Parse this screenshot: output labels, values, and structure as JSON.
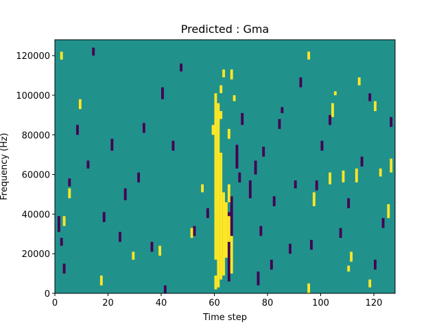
{
  "chart_data": {
    "type": "heatmap",
    "title": "Predicted : Gma",
    "xlabel": "Time step",
    "ylabel": "Frequency (Hz)",
    "xlim": [
      0,
      128
    ],
    "ylim": [
      0,
      128000
    ],
    "xticks": [
      "0",
      "20",
      "40",
      "60",
      "80",
      "100",
      "120"
    ],
    "xtick_values": [
      0,
      20,
      40,
      60,
      80,
      100,
      120
    ],
    "yticks": [
      "0",
      "20000",
      "40000",
      "60000",
      "80000",
      "100000",
      "120000"
    ],
    "ytick_values": [
      0,
      20000,
      40000,
      60000,
      80000,
      100000,
      120000
    ],
    "n_time_steps": 128,
    "n_freq_bins": 128,
    "freq_bin_width_hz": 1000,
    "values_description": "cell value 0 = low, 0.5 = background, 1 = high",
    "colors": {
      "low": "#440154",
      "mid": "#21918c",
      "high": "#fde725"
    },
    "background_value": 0.5,
    "high_cells": [
      [
        60,
        2,
        8
      ],
      [
        60,
        17,
        100
      ],
      [
        61,
        3,
        95
      ],
      [
        62,
        7,
        70
      ],
      [
        63,
        9,
        50
      ],
      [
        64,
        18,
        45
      ],
      [
        65,
        26,
        38
      ],
      [
        65,
        46,
        54
      ],
      [
        66,
        10,
        28
      ],
      [
        61,
        86,
        90
      ],
      [
        62,
        88,
        91
      ],
      [
        59,
        80,
        84
      ],
      [
        65,
        78,
        82
      ],
      [
        67,
        97,
        99
      ],
      [
        62,
        101,
        104
      ],
      [
        63,
        109,
        112
      ],
      [
        66,
        108,
        112
      ],
      [
        17,
        4,
        8
      ],
      [
        39,
        19,
        23
      ],
      [
        29,
        17,
        20
      ],
      [
        51,
        28,
        32
      ],
      [
        55,
        51,
        54
      ],
      [
        97,
        44,
        50
      ],
      [
        103,
        55,
        60
      ],
      [
        108,
        56,
        61
      ],
      [
        113,
        56,
        62
      ],
      [
        122,
        59,
        62
      ],
      [
        95,
        0,
        4
      ],
      [
        95,
        118,
        121
      ],
      [
        105,
        100,
        101
      ],
      [
        104,
        89,
        95
      ],
      [
        118,
        3,
        6
      ],
      [
        110,
        11,
        13
      ],
      [
        111,
        16,
        20
      ],
      [
        125,
        38,
        44
      ],
      [
        126,
        61,
        67
      ],
      [
        120,
        92,
        96
      ],
      [
        114,
        105,
        108
      ],
      [
        3,
        34,
        38
      ],
      [
        5,
        48,
        52
      ],
      [
        9,
        93,
        97
      ],
      [
        2,
        118,
        121
      ]
    ],
    "low_cells": [
      [
        65,
        6,
        40
      ],
      [
        66,
        28,
        48
      ],
      [
        68,
        63,
        74
      ],
      [
        69,
        56,
        60
      ],
      [
        70,
        85,
        90
      ],
      [
        73,
        48,
        56
      ],
      [
        75,
        60,
        66
      ],
      [
        76,
        4,
        10
      ],
      [
        77,
        29,
        33
      ],
      [
        78,
        69,
        73
      ],
      [
        81,
        12,
        16
      ],
      [
        82,
        44,
        48
      ],
      [
        84,
        83,
        87
      ],
      [
        85,
        91,
        93
      ],
      [
        88,
        20,
        24
      ],
      [
        90,
        53,
        56
      ],
      [
        92,
        104,
        108
      ],
      [
        1,
        31,
        38
      ],
      [
        2,
        24,
        27
      ],
      [
        3,
        10,
        14
      ],
      [
        5,
        54,
        57
      ],
      [
        8,
        80,
        84
      ],
      [
        12,
        63,
        66
      ],
      [
        14,
        120,
        123
      ],
      [
        18,
        36,
        40
      ],
      [
        21,
        72,
        77
      ],
      [
        24,
        26,
        30
      ],
      [
        26,
        47,
        52
      ],
      [
        31,
        56,
        60
      ],
      [
        33,
        81,
        85
      ],
      [
        36,
        21,
        25
      ],
      [
        40,
        98,
        103
      ],
      [
        41,
        0,
        3
      ],
      [
        44,
        72,
        76
      ],
      [
        47,
        112,
        115
      ],
      [
        52,
        29,
        33
      ],
      [
        57,
        38,
        42
      ],
      [
        96,
        22,
        26
      ],
      [
        98,
        52,
        56
      ],
      [
        100,
        72,
        76
      ],
      [
        103,
        85,
        89
      ],
      [
        107,
        28,
        32
      ],
      [
        110,
        43,
        47
      ],
      [
        115,
        64,
        68
      ],
      [
        118,
        97,
        100
      ],
      [
        120,
        12,
        16
      ],
      [
        123,
        33,
        37
      ],
      [
        126,
        84,
        88
      ]
    ]
  }
}
